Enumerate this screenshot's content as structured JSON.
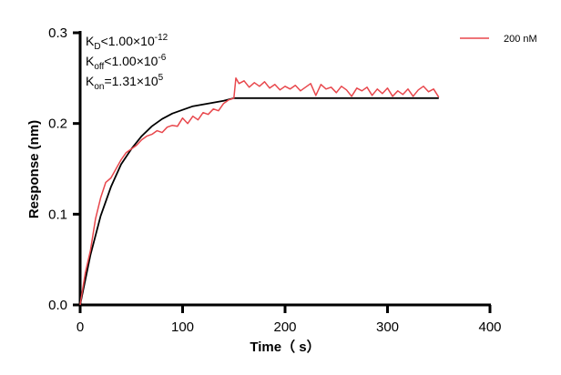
{
  "chart_data": {
    "type": "line",
    "title": "",
    "xlabel": "Time（ s）",
    "ylabel": "Response (nm)",
    "xlim": [
      0,
      400
    ],
    "ylim": [
      0,
      0.3
    ],
    "xticks": [
      "0",
      "100",
      "200",
      "300",
      "400"
    ],
    "yticks": [
      "0.0",
      "0.1",
      "0.2",
      "0.3"
    ],
    "grid": false,
    "legend_position": "top-right",
    "annotations": [
      {
        "base": "K",
        "sub": "D",
        "rel": "<1.00×10",
        "sup": "-12"
      },
      {
        "base": "K",
        "sub": "off",
        "rel": "<1.00×10",
        "sup": "-6"
      },
      {
        "base": "K",
        "sub": "on",
        "rel": "=1.31×10",
        "sup": "5"
      }
    ],
    "series": [
      {
        "name": "200 nM",
        "color": "#e8474c",
        "x": [
          0,
          5,
          10,
          15,
          20,
          25,
          30,
          35,
          40,
          45,
          50,
          55,
          60,
          65,
          70,
          75,
          80,
          85,
          90,
          95,
          100,
          105,
          110,
          115,
          120,
          125,
          130,
          135,
          140,
          145,
          150,
          152,
          155,
          160,
          165,
          170,
          175,
          180,
          185,
          190,
          195,
          200,
          205,
          210,
          215,
          220,
          225,
          230,
          235,
          240,
          245,
          250,
          255,
          260,
          265,
          270,
          275,
          280,
          285,
          290,
          295,
          300,
          305,
          310,
          315,
          320,
          325,
          330,
          335,
          340,
          345,
          350
        ],
        "y": [
          0.0,
          0.035,
          0.06,
          0.095,
          0.118,
          0.135,
          0.14,
          0.15,
          0.16,
          0.168,
          0.172,
          0.176,
          0.182,
          0.186,
          0.188,
          0.192,
          0.19,
          0.196,
          0.198,
          0.197,
          0.206,
          0.2,
          0.208,
          0.204,
          0.212,
          0.21,
          0.216,
          0.214,
          0.222,
          0.226,
          0.228,
          0.25,
          0.244,
          0.247,
          0.24,
          0.245,
          0.241,
          0.246,
          0.239,
          0.243,
          0.237,
          0.241,
          0.238,
          0.242,
          0.236,
          0.24,
          0.244,
          0.231,
          0.243,
          0.238,
          0.24,
          0.234,
          0.241,
          0.237,
          0.23,
          0.239,
          0.236,
          0.24,
          0.231,
          0.238,
          0.233,
          0.239,
          0.23,
          0.236,
          0.232,
          0.238,
          0.23,
          0.237,
          0.241,
          0.235,
          0.238,
          0.229
        ]
      },
      {
        "color": "#000000",
        "x": [
          0,
          10,
          20,
          30,
          40,
          50,
          60,
          70,
          80,
          90,
          100,
          110,
          120,
          130,
          140,
          150,
          200,
          250,
          300,
          350
        ],
        "y": [
          0,
          0.055,
          0.098,
          0.13,
          0.155,
          0.172,
          0.186,
          0.197,
          0.205,
          0.211,
          0.215,
          0.219,
          0.221,
          0.223,
          0.225,
          0.228,
          0.228,
          0.228,
          0.228,
          0.228
        ]
      }
    ]
  }
}
